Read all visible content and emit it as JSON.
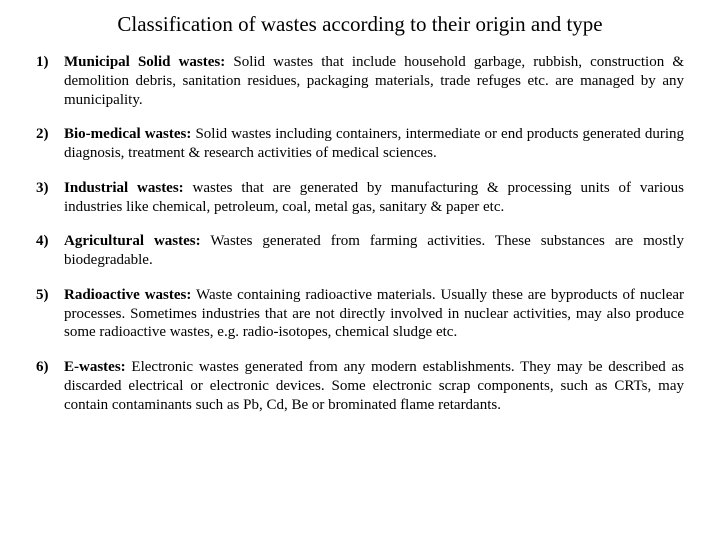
{
  "title": "Classification of wastes according to their origin and type",
  "items": [
    {
      "label": "Municipal Solid wastes:",
      "body": " Solid wastes that include household garbage, rubbish, construction & demolition debris, sanitation residues, packaging materials, trade refuges etc. are managed by any municipality."
    },
    {
      "label": "Bio-medical wastes:",
      "body": " Solid wastes including containers, intermediate or end products generated during diagnosis, treatment & research activities of medical sciences."
    },
    {
      "label": "Industrial wastes:",
      "body": " wastes that are generated by manufacturing & processing units of various industries like chemical, petroleum, coal, metal gas, sanitary & paper etc."
    },
    {
      "label": "Agricultural wastes:",
      "body": " Wastes generated from farming activities.  These substances are mostly biodegradable."
    },
    {
      "label": "Radioactive wastes:",
      "body": " Waste containing radioactive materials. Usually these are byproducts of nuclear processes. Sometimes industries that are not directly involved in nuclear activities, may also produce some radioactive wastes, e.g. radio-isotopes, chemical sludge etc."
    },
    {
      "label": "E-wastes:",
      "body": " Electronic wastes generated from any modern establishments. They may be described as discarded electrical or electronic devices. Some electronic scrap components, such as CRTs, may contain contaminants such as Pb, Cd, Be or brominated flame retardants."
    }
  ]
}
